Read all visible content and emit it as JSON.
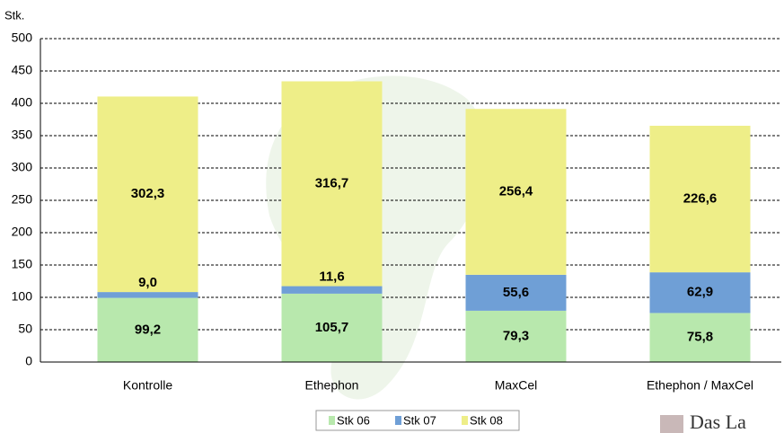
{
  "chart_data": {
    "type": "bar",
    "stacked": true,
    "y_axis_label": "Stk.",
    "categories": [
      "Kontrolle",
      "Ethephon",
      "MaxCel",
      "Ethephon / MaxCel"
    ],
    "series": [
      {
        "name": "Stk 06",
        "color": "#b8e8ad",
        "values": [
          99.2,
          105.7,
          79.3,
          75.8
        ],
        "value_labels": [
          "99,2",
          "105,7",
          "79,3",
          "75,8"
        ]
      },
      {
        "name": "Stk 07",
        "color": "#6f9fd6",
        "values": [
          9.0,
          11.6,
          55.6,
          62.9
        ],
        "value_labels": [
          "9,0",
          "11,6",
          "55,6",
          "62,9"
        ]
      },
      {
        "name": "Stk 08",
        "color": "#eeee88",
        "values": [
          302.3,
          316.7,
          256.4,
          226.6
        ],
        "value_labels": [
          "302,3",
          "316,7",
          "256,4",
          "226,6"
        ]
      }
    ],
    "ylim": [
      0,
      500
    ],
    "yticks": [
      0,
      50,
      100,
      150,
      200,
      250,
      300,
      350,
      400,
      450,
      500
    ],
    "grid": true,
    "logo_text": "Das La"
  }
}
